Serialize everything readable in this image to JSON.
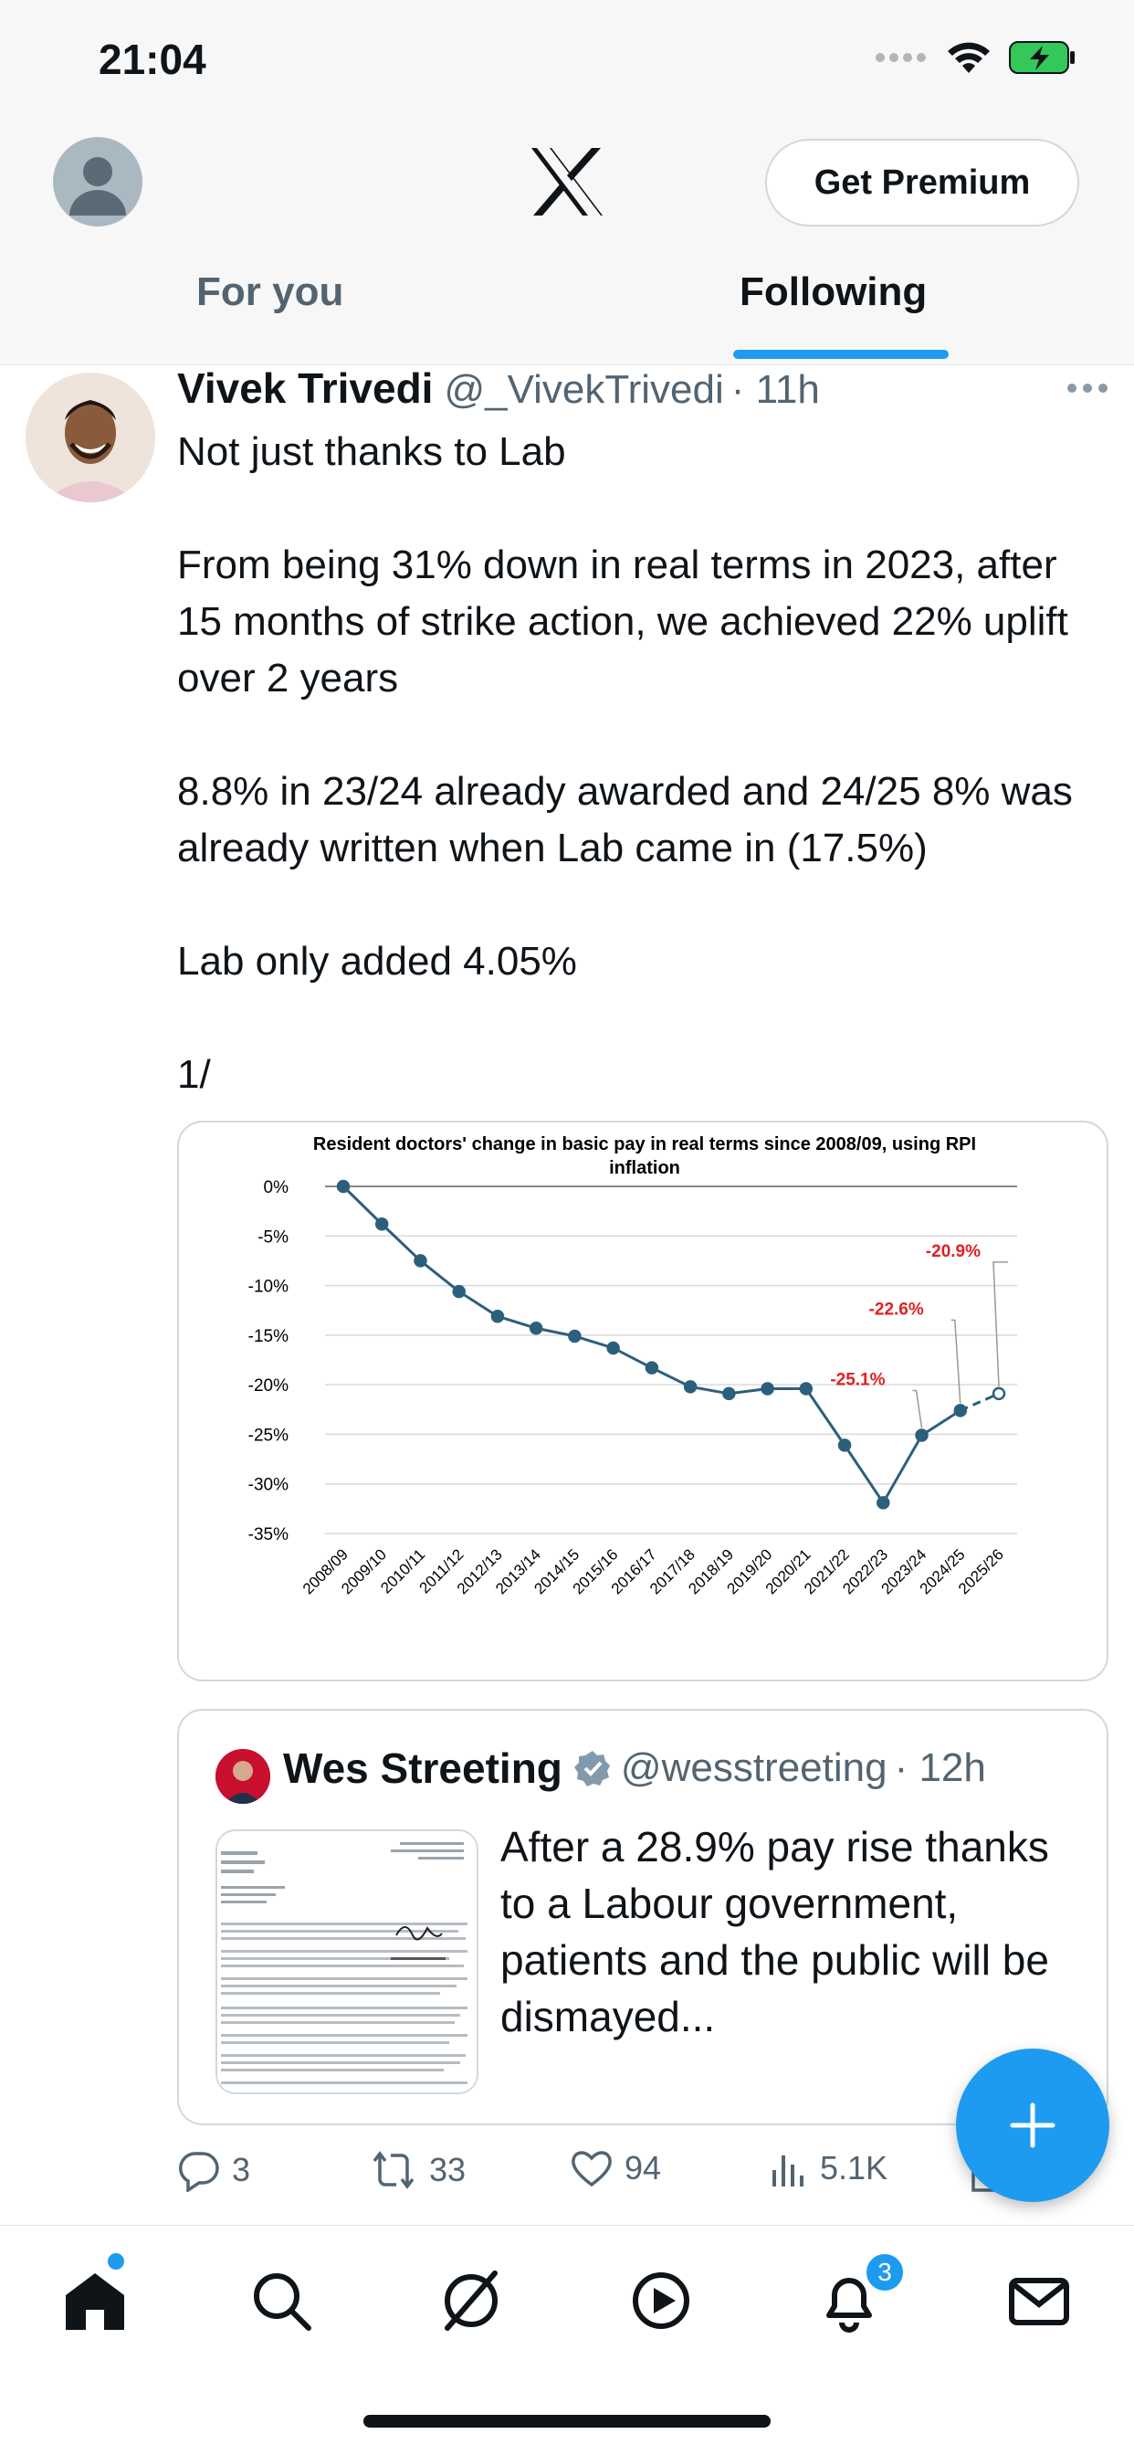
{
  "status_bar": {
    "time": "21:04"
  },
  "header": {
    "premium_label": "Get Premium",
    "tabs": [
      {
        "label": "For you",
        "active": false
      },
      {
        "label": "Following",
        "active": true
      }
    ],
    "accent_color": "#1d9bf0"
  },
  "tweet": {
    "author": "Vivek Trivedi",
    "handle": "@_VivekTrivedi",
    "time": "· 11h",
    "text": "Not just thanks to Lab\n\nFrom being 31% down in real terms in 2023, after 15 months of strike action, we achieved 22% uplift over 2 years\n\n8.8% in 23/24 already awarded and 24/25 8% was already written when Lab came in (17.5%)\n\nLab only added 4.05%\n\n1/",
    "actions": {
      "replies": "3",
      "reposts": "33",
      "likes": "94",
      "views": "5.1K"
    }
  },
  "chart_data": {
    "type": "line",
    "title": "Resident doctors' change in basic pay in real terms since 2008/09, using RPI inflation",
    "categories": [
      "2008/09",
      "2009/10",
      "2010/11",
      "2011/12",
      "2012/13",
      "2013/14",
      "2014/15",
      "2015/16",
      "2016/17",
      "2017/18",
      "2018/19",
      "2019/20",
      "2020/21",
      "2021/22",
      "2022/23",
      "2023/24",
      "2024/25",
      "2025/26"
    ],
    "values": [
      0,
      -3.8,
      -7.5,
      -10.6,
      -13.1,
      -14.3,
      -15.1,
      -16.3,
      -18.3,
      -20.2,
      -20.9,
      -20.4,
      -20.4,
      -26.1,
      -31.9,
      -25.1,
      -22.6,
      -20.9
    ],
    "y_ticks": [
      "0%",
      "-5%",
      "-10%",
      "-15%",
      "-20%",
      "-25%",
      "-30%",
      "-35%"
    ],
    "ylim": [
      -35,
      0
    ],
    "dashed_from_index": 16,
    "annotations": [
      {
        "index": 15,
        "label": "-25.1%"
      },
      {
        "index": 16,
        "label": "-22.6%"
      },
      {
        "index": 17,
        "label": "-20.9%"
      }
    ],
    "line_color": "#2c5f7c",
    "annotation_color": "#e02020",
    "grid": true
  },
  "quote": {
    "author": "Wes Streeting",
    "handle": "@wesstreeting",
    "time": "· 12h",
    "text": "After a 28.9% pay rise thanks to a Labour government, patients and the public will be dismayed..."
  },
  "bottom_nav": {
    "items": [
      "home-icon",
      "search-icon",
      "grok-icon",
      "video-icon",
      "notifications-icon",
      "messages-icon"
    ],
    "notification_count": "3"
  }
}
